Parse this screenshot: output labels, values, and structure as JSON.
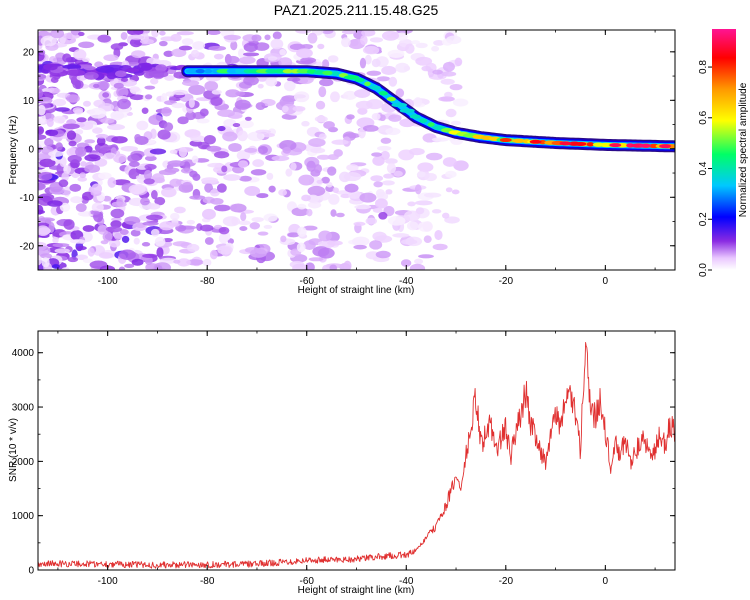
{
  "chart_data": [
    {
      "type": "heatmap",
      "title": "PAZ1.2025.211.15.48.G25",
      "xlabel": "Height of straight line (km)",
      "ylabel": "Frequency (Hz)",
      "xlim": [
        -114,
        14
      ],
      "ylim": [
        -25,
        24.5
      ],
      "xticks": [
        -100,
        -80,
        -60,
        -40,
        -20,
        0
      ],
      "yticks": [
        -20,
        -10,
        0,
        10,
        20
      ],
      "colorbar": {
        "label": "Normalized spectral amplitude",
        "range": [
          0.0,
          0.95
        ],
        "ticks": [
          0.0,
          0.2,
          0.4,
          0.6,
          0.8
        ],
        "tick_labels": [
          "0.0",
          "0.2",
          "0.4",
          "0.6",
          "0.8"
        ],
        "colormap": [
          "#ffffff",
          "#e9c6ff",
          "#8a2be2",
          "#0000ff",
          "#00c8ff",
          "#00ff66",
          "#ffff00",
          "#ff9900",
          "#ff0000",
          "#ff1493"
        ]
      },
      "signal_track": {
        "x": [
          -84,
          -70,
          -60,
          -54,
          -50,
          -46,
          -42,
          -38,
          -34,
          -30,
          -25,
          -20,
          -10,
          0,
          14
        ],
        "frequency": [
          16,
          16,
          16,
          15.5,
          14.5,
          12.5,
          9.5,
          6.5,
          4.5,
          3.3,
          2.4,
          1.8,
          1.2,
          0.8,
          0.5
        ],
        "amplitude": [
          0.3,
          0.5,
          0.5,
          0.45,
          0.45,
          0.4,
          0.45,
          0.4,
          0.45,
          0.5,
          0.55,
          0.6,
          0.7,
          0.75,
          0.8
        ]
      },
      "noise_region": {
        "x": [
          -114,
          -50
        ],
        "amplitude_range": [
          0.0,
          0.15
        ]
      }
    },
    {
      "type": "line",
      "xlabel": "Height of straight line (km)",
      "ylabel": "SNR (10 * v/v)",
      "xlim": [
        -114,
        14
      ],
      "ylim": [
        0,
        4400
      ],
      "xticks": [
        -100,
        -80,
        -60,
        -40,
        -20,
        0
      ],
      "yticks": [
        0,
        1000,
        2000,
        3000,
        4000
      ],
      "color": "#e03030",
      "series": [
        {
          "x": [
            -114,
            -100,
            -90,
            -80,
            -70,
            -60,
            -50,
            -45,
            -40,
            -38,
            -36,
            -34,
            -32,
            -30,
            -29,
            -28,
            -27,
            -26,
            -25,
            -24,
            -23,
            -22,
            -21,
            -20,
            -19,
            -18,
            -17,
            -16,
            -15,
            -14,
            -13,
            -12,
            -11,
            -10,
            -9,
            -8,
            -7,
            -6,
            -5,
            -4,
            -3,
            -2,
            -1,
            0,
            1,
            2,
            3,
            4,
            5,
            6,
            7,
            8,
            9,
            10,
            11,
            12,
            13,
            14
          ],
          "y": [
            120,
            110,
            90,
            100,
            110,
            180,
            200,
            250,
            280,
            350,
            600,
            800,
            1200,
            1700,
            1500,
            2100,
            2600,
            3200,
            2300,
            2500,
            2700,
            2200,
            2400,
            2600,
            2100,
            2500,
            2900,
            3300,
            2700,
            2500,
            2200,
            2000,
            2400,
            2900,
            2700,
            3000,
            3300,
            2800,
            2200,
            4300,
            3000,
            2800,
            3200,
            2600,
            1900,
            2300,
            2100,
            2400,
            2000,
            2200,
            2300,
            2400,
            2100,
            2200,
            2500,
            2300,
            2700,
            2500
          ]
        }
      ]
    }
  ]
}
